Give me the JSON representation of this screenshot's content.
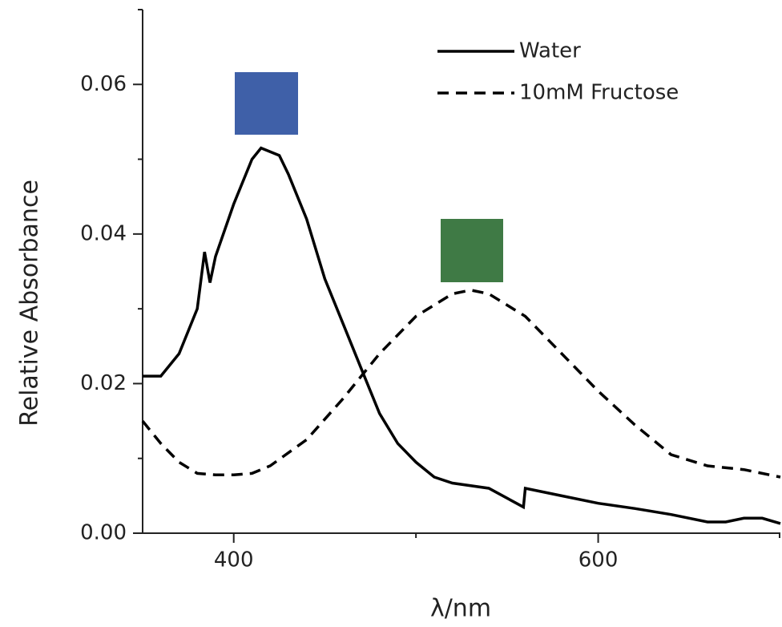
{
  "chart_data": {
    "type": "line",
    "x_label": "λ/nm",
    "y_label": "Relative Absorbance",
    "xlim": [
      350,
      700
    ],
    "ylim": [
      0,
      0.07
    ],
    "xticks": [
      400,
      600
    ],
    "xminorticks": [
      500,
      700
    ],
    "yticks": [
      {
        "value": 0,
        "label": "0.00"
      },
      {
        "value": 0.02,
        "label": "0.02"
      },
      {
        "value": 0.04,
        "label": "0.04"
      },
      {
        "value": 0.06,
        "label": "0.06"
      }
    ],
    "yminorticks": [
      0.01,
      0.03,
      0.05,
      0.07
    ],
    "legend": "upper right",
    "series": [
      {
        "name": "Water",
        "color": "#000000",
        "line_style": "solid",
        "x": [
          350,
          360,
          370,
          380,
          384,
          387,
          390,
          400,
          410,
          415,
          420,
          425,
          430,
          440,
          450,
          460,
          470,
          480,
          490,
          500,
          510,
          520,
          540,
          559,
          560,
          580,
          600,
          620,
          640,
          660,
          670,
          680,
          690,
          700
        ],
        "values": [
          0.021,
          0.021,
          0.024,
          0.03,
          0.0376,
          0.0335,
          0.037,
          0.044,
          0.05,
          0.0515,
          0.051,
          0.0505,
          0.048,
          0.042,
          0.034,
          0.028,
          0.022,
          0.016,
          0.012,
          0.0095,
          0.0075,
          0.0067,
          0.006,
          0.0035,
          0.006,
          0.005,
          0.004,
          0.0033,
          0.0025,
          0.0015,
          0.0015,
          0.002,
          0.002,
          0.0013
        ]
      },
      {
        "name": "10mM Fructose",
        "color": "#000000",
        "line_style": "dashed",
        "x": [
          350,
          360,
          370,
          380,
          390,
          400,
          410,
          420,
          440,
          460,
          470,
          480,
          500,
          520,
          530,
          540,
          560,
          580,
          600,
          620,
          640,
          660,
          680,
          700
        ],
        "values": [
          0.015,
          0.012,
          0.0095,
          0.008,
          0.0078,
          0.0078,
          0.008,
          0.009,
          0.0125,
          0.018,
          0.021,
          0.024,
          0.029,
          0.032,
          0.0325,
          0.032,
          0.029,
          0.024,
          0.019,
          0.0145,
          0.0105,
          0.009,
          0.0085,
          0.0075
        ]
      }
    ]
  }
}
